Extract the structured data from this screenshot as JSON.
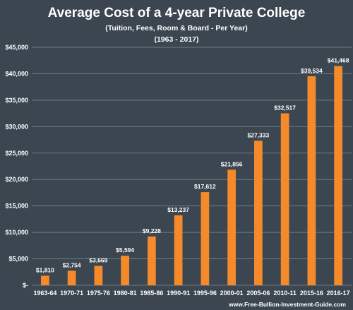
{
  "chart_data": {
    "type": "bar",
    "title": "Average Cost of a 4-year Private College",
    "subtitle": "(Tuition, Fees, Room & Board - Per Year)",
    "subtitle2": "(1963 - 2017)",
    "categories": [
      "1963-64",
      "1970-71",
      "1975-76",
      "1980-81",
      "1985-86",
      "1990-91",
      "1995-96",
      "2000-01",
      "2005-06",
      "2010-11",
      "2015-16",
      "2016-17"
    ],
    "values": [
      1810,
      2754,
      3669,
      5594,
      9228,
      13237,
      17612,
      21856,
      27333,
      32517,
      39534,
      41468
    ],
    "data_labels": [
      "$1,810",
      "$2,754",
      "$3,669",
      "$5,594",
      "$9,228",
      "$13,237",
      "$17,612",
      "$21,856",
      "$27,333",
      "$32,517",
      "$39,534",
      "$41,468"
    ],
    "yticks": [
      0,
      5000,
      10000,
      15000,
      20000,
      25000,
      30000,
      35000,
      40000,
      45000
    ],
    "ytick_labels": [
      "$-",
      "$5,000",
      "$10,000",
      "$15,000",
      "$20,000",
      "$25,000",
      "$30,000",
      "$35,000",
      "$40,000",
      "$45,000"
    ],
    "ylim": [
      0,
      45000
    ],
    "grid": true,
    "legend": "none",
    "source": "www.Free-Bullion-Investment-Guide.com",
    "colors": {
      "background": "#3b4650",
      "bar": "#f58a2a",
      "grid": "#6f7b86",
      "text": "#ffffff"
    }
  }
}
